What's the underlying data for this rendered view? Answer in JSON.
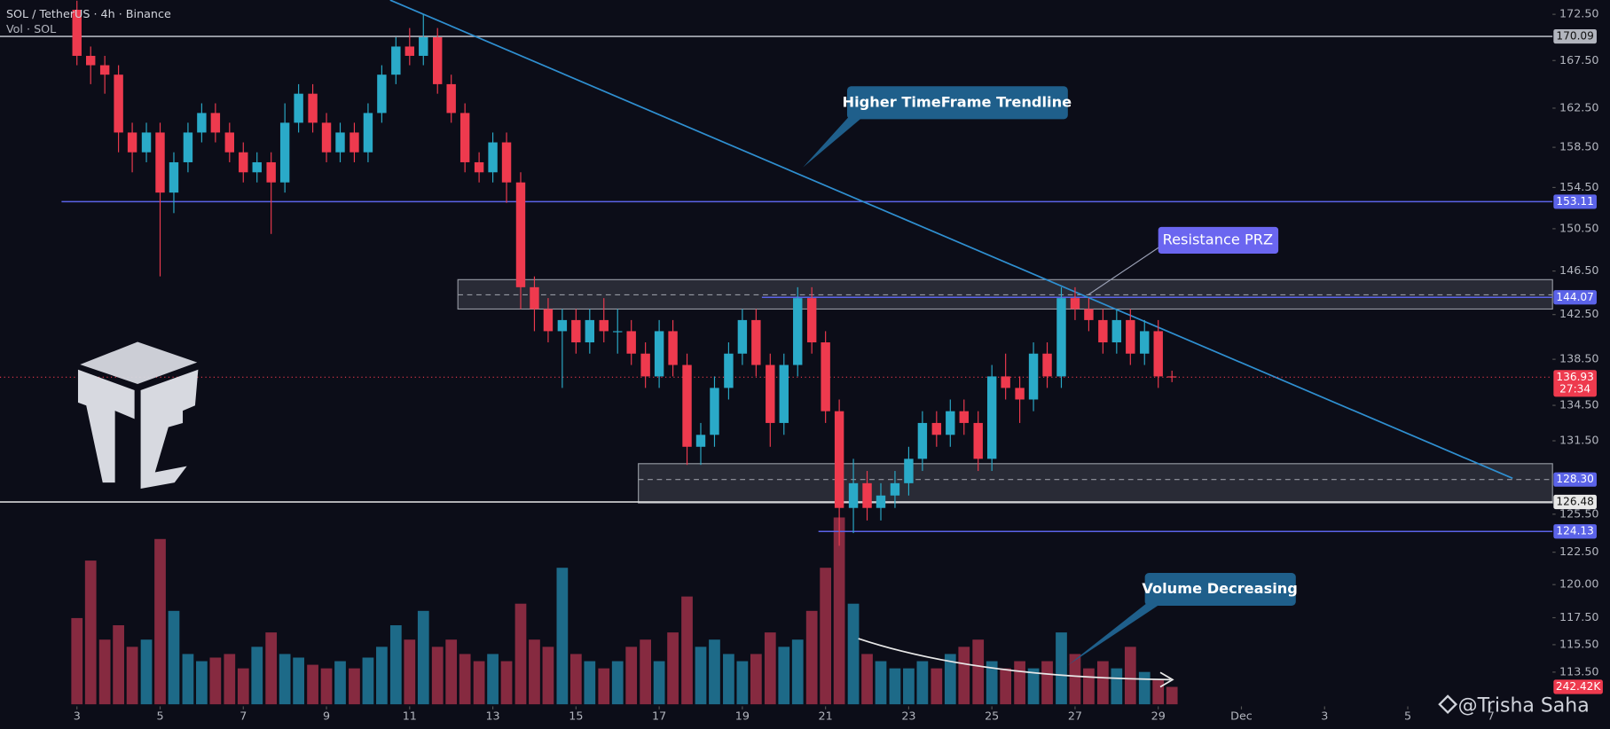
{
  "chart_data": {
    "type": "candlestick",
    "title": "SOL / TetherUS · 4h · Binance",
    "subtitle": "Vol · SOL",
    "watermark": "@Trisha Saha",
    "log_scale": true,
    "xlim": [
      1.15,
      38.48
    ],
    "ylim": [
      111.2,
      174.07
    ],
    "vol_lim": [
      0,
      2800
    ],
    "up_color": "#2aaac8",
    "down_color": "#ee3a4e",
    "vol_up_color": "#1d6a88",
    "vol_down_color": "#862a40",
    "xticks": [
      3,
      5,
      7,
      9,
      11,
      13,
      15,
      17,
      19,
      21,
      23,
      25,
      27,
      29,
      {
        "value": 31,
        "label": "Dec"
      },
      {
        "value": 33,
        "label": "3"
      },
      {
        "value": 35,
        "label": "5"
      },
      {
        "value": 37,
        "label": "7"
      }
    ],
    "yticks": [
      {
        "value": 172.5,
        "label": "172.50"
      },
      {
        "value": 167.5,
        "label": "167.50"
      },
      {
        "value": 162.5,
        "label": "162.50"
      },
      {
        "value": 158.5,
        "label": "158.50"
      },
      {
        "value": 154.5,
        "label": "154.50"
      },
      {
        "value": 150.5,
        "label": "150.50"
      },
      {
        "value": 146.5,
        "label": "146.50"
      },
      {
        "value": 142.5,
        "label": "142.50"
      },
      {
        "value": 138.5,
        "label": "138.50"
      },
      {
        "value": 134.5,
        "label": "134.50"
      },
      {
        "value": 131.5,
        "label": "131.50"
      },
      {
        "value": 125.5,
        "label": "125.50"
      },
      {
        "value": 122.5,
        "label": "122.50"
      },
      {
        "value": 120,
        "label": "120.00"
      },
      {
        "value": 117.5,
        "label": "117.50"
      },
      {
        "value": 115.5,
        "label": "115.50"
      },
      {
        "value": 113.5,
        "label": "113.50"
      }
    ],
    "levels": [
      {
        "value": 170.09,
        "label": "170.09",
        "from": 1.15,
        "color": "#b2b5be",
        "text_color": "#111"
      },
      {
        "value": 153.11,
        "label": "153.11",
        "from": 2.63,
        "color": "#5b63e8",
        "text_color": "#fff"
      },
      {
        "value": 144.07,
        "label": "144.07",
        "from": 19.47,
        "color": "#5b63e8",
        "text_color": "#fff"
      },
      {
        "value": 126.48,
        "label": "126.48",
        "from": 1.15,
        "color": "#e8e8e8",
        "text_color": "#111"
      },
      {
        "value": 124.13,
        "label": "124.13",
        "from": 20.83,
        "color": "#5b63e8",
        "text_color": "#fff"
      }
    ],
    "zones": [
      {
        "from": 12.16,
        "low": 143.0,
        "high": 145.7,
        "mid": 144.3
      },
      {
        "from": 16.5,
        "low": 126.4,
        "high": 129.6,
        "mid": {
          "value": 128.3,
          "label": "128.30"
        }
      }
    ],
    "current_price": {
      "value": 136.93,
      "label": "136.93",
      "countdown": "27:34"
    },
    "current_volume": {
      "value": 242.42,
      "label": "242.42K"
    },
    "trendline": {
      "from": [
        10.53,
        174.07
      ],
      "to": [
        37.52,
        128.4
      ]
    },
    "annotations": [
      "Higher TimeFrame Trendline",
      "Resistance PRZ",
      "Volume Decreasing"
    ],
    "candles": [
      [
        3,
        173,
        174,
        167,
        168,
        1200
      ],
      [
        3.33,
        168,
        169,
        165,
        167,
        2000
      ],
      [
        3.67,
        167,
        168,
        164,
        166,
        900
      ],
      [
        4,
        166,
        167,
        158,
        160,
        1100
      ],
      [
        4.33,
        160,
        161,
        156,
        158,
        800
      ],
      [
        4.67,
        158,
        161,
        157,
        160,
        900
      ],
      [
        5,
        160,
        161,
        146,
        154,
        2300
      ],
      [
        5.33,
        154,
        158,
        152,
        157,
        1300
      ],
      [
        5.67,
        157,
        161,
        156,
        160,
        700
      ],
      [
        6,
        160,
        163,
        159,
        162,
        600
      ],
      [
        6.33,
        162,
        163,
        159,
        160,
        650
      ],
      [
        6.67,
        160,
        161,
        157,
        158,
        700
      ],
      [
        7,
        158,
        159,
        155,
        156,
        500
      ],
      [
        7.33,
        156,
        158,
        155,
        157,
        800
      ],
      [
        7.67,
        157,
        158,
        150,
        155,
        1000
      ],
      [
        8,
        155,
        163,
        154,
        161,
        700
      ],
      [
        8.33,
        161,
        165,
        160,
        164,
        650
      ],
      [
        8.67,
        164,
        165,
        160,
        161,
        550
      ],
      [
        9,
        161,
        162,
        157,
        158,
        500
      ],
      [
        9.33,
        158,
        161,
        157,
        160,
        600
      ],
      [
        9.67,
        160,
        161,
        157,
        158,
        500
      ],
      [
        10,
        158,
        163,
        157,
        162,
        650
      ],
      [
        10.33,
        162,
        167,
        161,
        166,
        800
      ],
      [
        10.67,
        166,
        170,
        165,
        169,
        1100
      ],
      [
        11,
        169,
        171,
        167,
        168,
        900
      ],
      [
        11.33,
        168,
        172.5,
        167,
        170,
        1300
      ],
      [
        11.67,
        170,
        171,
        164,
        165,
        800
      ],
      [
        12,
        165,
        166,
        161,
        162,
        900
      ],
      [
        12.33,
        162,
        163,
        156,
        157,
        700
      ],
      [
        12.67,
        157,
        158,
        155,
        156,
        600
      ],
      [
        13,
        156,
        160,
        155,
        159,
        700
      ],
      [
        13.33,
        159,
        160,
        153,
        155,
        600
      ],
      [
        13.67,
        155,
        156,
        143,
        145,
        1400
      ],
      [
        14,
        145,
        146,
        141,
        143,
        900
      ],
      [
        14.33,
        143,
        144,
        140,
        141,
        800
      ],
      [
        14.67,
        141,
        143,
        136,
        142,
        1900
      ],
      [
        15,
        142,
        143,
        139,
        140,
        700
      ],
      [
        15.33,
        140,
        143,
        139,
        142,
        600
      ],
      [
        15.67,
        142,
        144,
        140,
        141,
        500
      ],
      [
        16,
        141,
        143,
        139,
        141,
        600
      ],
      [
        16.33,
        141,
        142,
        138,
        139,
        800
      ],
      [
        16.67,
        139,
        140,
        136,
        137,
        900
      ],
      [
        17,
        137,
        142,
        136,
        141,
        600
      ],
      [
        17.33,
        141,
        142,
        137,
        138,
        1000
      ],
      [
        17.67,
        138,
        139,
        129.5,
        131,
        1500
      ],
      [
        18,
        131,
        133,
        129.5,
        132,
        800
      ],
      [
        18.33,
        132,
        137,
        131,
        136,
        900
      ],
      [
        18.67,
        136,
        140,
        135,
        139,
        700
      ],
      [
        19,
        139,
        143,
        138,
        142,
        600
      ],
      [
        19.33,
        142,
        143,
        137,
        138,
        700
      ],
      [
        19.67,
        138,
        139,
        131,
        133,
        1000
      ],
      [
        20,
        133,
        139,
        132,
        138,
        800
      ],
      [
        20.33,
        138,
        145,
        137,
        144,
        900
      ],
      [
        20.67,
        144,
        145,
        139,
        140,
        1300
      ],
      [
        21,
        140,
        141,
        133,
        134,
        1900
      ],
      [
        21.33,
        134,
        135,
        123,
        126,
        2600
      ],
      [
        21.67,
        126,
        130,
        124,
        128,
        1400
      ],
      [
        22,
        128,
        129,
        125,
        126,
        700
      ],
      [
        22.33,
        126,
        128,
        125,
        127,
        600
      ],
      [
        22.67,
        127,
        129,
        126,
        128,
        500
      ],
      [
        23,
        128,
        131,
        127,
        130,
        500
      ],
      [
        23.33,
        130,
        134,
        129,
        133,
        600
      ],
      [
        23.67,
        133,
        134,
        131,
        132,
        500
      ],
      [
        24,
        132,
        135,
        131,
        134,
        700
      ],
      [
        24.33,
        134,
        135,
        132,
        133,
        800
      ],
      [
        24.67,
        133,
        134,
        129,
        130,
        900
      ],
      [
        25,
        130,
        138,
        129,
        137,
        600
      ],
      [
        25.33,
        137,
        139,
        135,
        136,
        500
      ],
      [
        25.67,
        136,
        137,
        133,
        135,
        600
      ],
      [
        26,
        135,
        140,
        134,
        139,
        500
      ],
      [
        26.33,
        139,
        140,
        136,
        137,
        600
      ],
      [
        26.67,
        137,
        145,
        136,
        144,
        1000
      ],
      [
        27,
        144,
        145,
        142,
        143,
        700
      ],
      [
        27.33,
        143,
        144,
        141,
        142,
        500
      ],
      [
        27.67,
        142,
        143,
        139,
        140,
        600
      ],
      [
        28,
        140,
        143,
        139,
        142,
        500
      ],
      [
        28.33,
        142,
        143,
        138,
        139,
        800
      ],
      [
        28.67,
        139,
        142,
        138,
        141,
        450
      ],
      [
        29,
        141,
        142,
        136,
        137,
        350
      ],
      [
        29.33,
        137,
        137.5,
        136.5,
        136.93,
        242.42
      ]
    ]
  }
}
